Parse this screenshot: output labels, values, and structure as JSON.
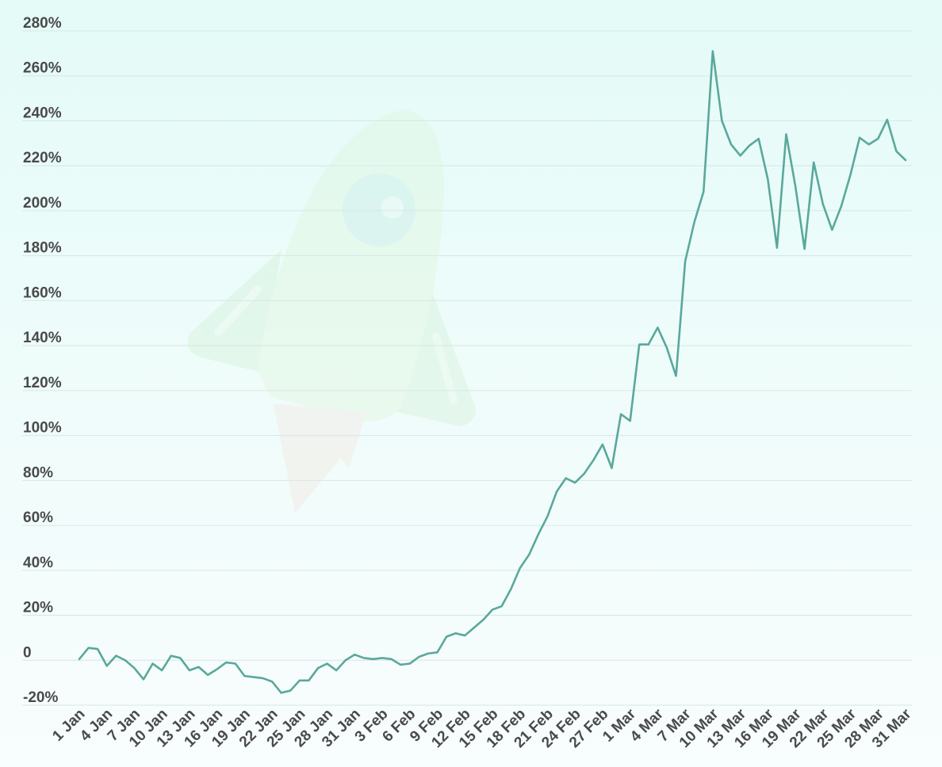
{
  "colors": {
    "line": "#5aa89c",
    "grid": "#d6e7e6",
    "text": "#4a4a4a"
  },
  "watermark": {
    "icon": "rocket-icon"
  },
  "chart_data": {
    "type": "line",
    "title": "",
    "xlabel": "",
    "ylabel": "",
    "ylim": [
      -20,
      280
    ],
    "yticks": [
      -20,
      0,
      20,
      40,
      60,
      80,
      100,
      120,
      140,
      160,
      180,
      200,
      220,
      240,
      260,
      280
    ],
    "ytick_labels": [
      "-20%",
      "0",
      "20%",
      "40%",
      "60%",
      "80%",
      "100%",
      "120%",
      "140%",
      "160%",
      "180%",
      "200%",
      "220%",
      "240%",
      "260%",
      "280%"
    ],
    "xtick_labels": [
      "1 Jan",
      "4 Jan",
      "7 Jan",
      "10 Jan",
      "13 Jan",
      "16 Jan",
      "19 Jan",
      "22 Jan",
      "25 Jan",
      "28 Jan",
      "31 Jan",
      "3 Feb",
      "6 Feb",
      "9 Feb",
      "12 Feb",
      "15 Feb",
      "18 Feb",
      "21 Feb",
      "24 Feb",
      "27 Feb",
      "1 Mar",
      "4 Mar",
      "7 Mar",
      "10 Mar",
      "13 Mar",
      "16 Mar",
      "19 Mar",
      "22 Mar",
      "25 Mar",
      "28 Mar",
      "31 Mar"
    ],
    "grid": true,
    "legend": "none",
    "series": [
      {
        "x": [
          "1 Jan",
          "2 Jan",
          "3 Jan",
          "4 Jan",
          "5 Jan",
          "6 Jan",
          "7 Jan",
          "8 Jan",
          "9 Jan",
          "10 Jan",
          "11 Jan",
          "12 Jan",
          "13 Jan",
          "14 Jan",
          "15 Jan",
          "16 Jan",
          "17 Jan",
          "18 Jan",
          "19 Jan",
          "20 Jan",
          "21 Jan",
          "22 Jan",
          "23 Jan",
          "24 Jan",
          "25 Jan",
          "26 Jan",
          "27 Jan",
          "28 Jan",
          "29 Jan",
          "30 Jan",
          "31 Jan",
          "1 Feb",
          "2 Feb",
          "3 Feb",
          "4 Feb",
          "5 Feb",
          "6 Feb",
          "7 Feb",
          "8 Feb",
          "9 Feb",
          "10 Feb",
          "11 Feb",
          "12 Feb",
          "13 Feb",
          "14 Feb",
          "15 Feb",
          "16 Feb",
          "17 Feb",
          "18 Feb",
          "19 Feb",
          "20 Feb",
          "21 Feb",
          "22 Feb",
          "23 Feb",
          "24 Feb",
          "25 Feb",
          "26 Feb",
          "27 Feb",
          "28 Feb",
          "29 Feb",
          "1 Mar",
          "2 Mar",
          "3 Mar",
          "4 Mar",
          "5 Mar",
          "6 Mar",
          "7 Mar",
          "8 Mar",
          "9 Mar",
          "10 Mar",
          "11 Mar",
          "12 Mar",
          "13 Mar",
          "14 Mar",
          "15 Mar",
          "16 Mar",
          "17 Mar",
          "18 Mar",
          "19 Mar",
          "20 Mar",
          "21 Mar",
          "22 Mar",
          "23 Mar",
          "24 Mar",
          "25 Mar",
          "26 Mar",
          "27 Mar",
          "28 Mar",
          "29 Mar",
          "30 Mar",
          "31 Mar"
        ],
        "values": [
          0.5,
          5.5,
          5,
          -2.5,
          2,
          0,
          -3.5,
          -8.5,
          -1.5,
          -4.5,
          2,
          1,
          -4.5,
          -3,
          -6.5,
          -4,
          -1,
          -1.5,
          -7,
          -7.5,
          -8,
          -9.5,
          -14.5,
          -13.5,
          -9,
          -9,
          -3.5,
          -1.5,
          -4.5,
          0,
          2.5,
          1,
          0.5,
          1,
          0.5,
          -2,
          -1.5,
          1.5,
          3,
          3.5,
          10.5,
          12,
          11,
          14.5,
          18,
          22.5,
          24,
          31.5,
          41,
          47,
          56,
          64,
          75,
          81,
          79,
          83,
          89,
          96,
          85.5,
          109.5,
          106.5,
          140.5,
          140.5,
          148,
          139,
          126.5,
          177.5,
          195,
          208.5,
          271,
          240,
          229.5,
          224.5,
          229,
          232,
          214,
          183.5,
          234,
          211,
          183,
          221.5,
          203,
          191.5,
          202,
          216,
          232.5,
          229.5,
          232,
          240.5,
          226.5,
          222.5
        ]
      }
    ]
  }
}
